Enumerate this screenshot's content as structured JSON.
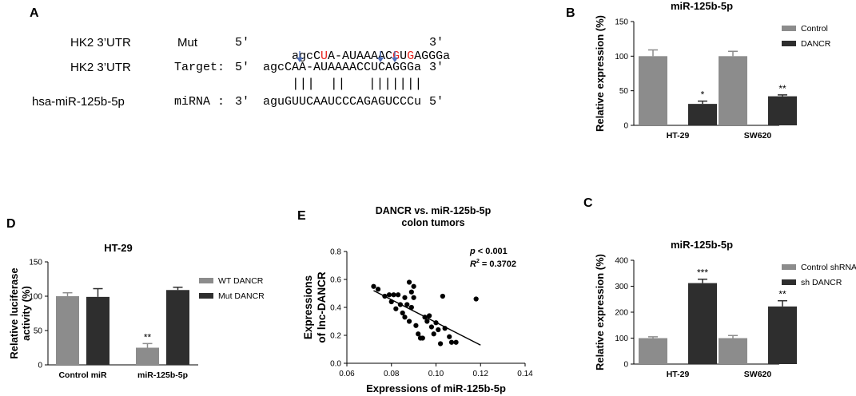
{
  "panel_letters": {
    "a": "A",
    "b": "B",
    "c": "C",
    "d": "D",
    "e": "E"
  },
  "panel_a": {
    "rows": [
      {
        "gene": "HK2 3’UTR",
        "kind": "Mut",
        "prime5": "5'",
        "seq": [
          {
            "t": "agcC",
            "red": false
          },
          {
            "t": "U",
            "red": true
          },
          {
            "t": "A-AUAAAAC",
            "red": false
          },
          {
            "t": "G",
            "red": true
          },
          {
            "t": "U",
            "red": false
          },
          {
            "t": "G",
            "red": true
          },
          {
            "t": "AGGGa",
            "red": false
          }
        ],
        "prime3": "3'"
      },
      {
        "gene": "HK2 3’UTR",
        "kind": "Target:",
        "prime5": "5'",
        "seq": [
          {
            "t": "agcCAA-AUAAAACCUCAGGGa",
            "red": false
          }
        ],
        "prime3": "3'"
      },
      {
        "gene": "hsa-miR-125b-5p",
        "kind": "miRNA :",
        "prime5": "3'",
        "seq": [
          {
            "t": "aguGUUCAAUCCCAGAGUCCCu",
            "red": false
          }
        ],
        "prime3": "5'"
      }
    ],
    "pairing": "|||  ||   |||||||",
    "arrow_color": "#4f6fb8"
  },
  "colors": {
    "light_bar": "#8c8c8c",
    "dark_bar": "#2e2e2e"
  },
  "chart_data": [
    {
      "id": "B",
      "type": "bar",
      "title": "miR-125b-5p",
      "ylabel": "Relative expression (%)",
      "xlabel": "",
      "categories": [
        "HT-29",
        "SW620"
      ],
      "ylim": [
        0,
        150
      ],
      "yticks": [
        "0",
        "50",
        "100",
        "150"
      ],
      "series": [
        {
          "name": "Control",
          "values": [
            100,
            100
          ],
          "errors": [
            9,
            7
          ]
        },
        {
          "name": "DANCR",
          "values": [
            31,
            42
          ],
          "errors": [
            4,
            2
          ]
        }
      ],
      "annotations": [
        {
          "category": "HT-29",
          "series": "DANCR",
          "text": "*"
        },
        {
          "category": "SW620",
          "series": "DANCR",
          "text": "**"
        }
      ],
      "legend_position": "top-right"
    },
    {
      "id": "C",
      "type": "bar",
      "title": "miR-125b-5p",
      "ylabel": "Relative expression (%)",
      "xlabel": "",
      "categories": [
        "HT-29",
        "SW620"
      ],
      "ylim": [
        0,
        400
      ],
      "yticks": [
        "0",
        "100",
        "200",
        "300",
        "400"
      ],
      "series": [
        {
          "name": "Control shRNA",
          "values": [
            100,
            100
          ],
          "errors": [
            5,
            10
          ]
        },
        {
          "name": "sh DANCR",
          "values": [
            312,
            222
          ],
          "errors": [
            15,
            22
          ]
        }
      ],
      "annotations": [
        {
          "category": "HT-29",
          "series": "sh DANCR",
          "text": "***"
        },
        {
          "category": "SW620",
          "series": "sh DANCR",
          "text": "**"
        }
      ],
      "legend_position": "top-right"
    },
    {
      "id": "D",
      "type": "bar",
      "title": "HT-29",
      "ylabel": "Relative luciferase activity (%)",
      "xlabel": "",
      "categories": [
        "Control miR",
        "miR-125b-5p"
      ],
      "ylim": [
        0,
        150
      ],
      "yticks": [
        "0",
        "50",
        "100",
        "150"
      ],
      "series": [
        {
          "name": "WT DANCR",
          "values": [
            100,
            25
          ],
          "errors": [
            5,
            6
          ]
        },
        {
          "name": "Mut DANCR",
          "values": [
            99,
            109
          ],
          "errors": [
            12,
            4
          ]
        }
      ],
      "annotations": [
        {
          "category": "miR-125b-5p",
          "series": "WT DANCR",
          "text": "**"
        }
      ],
      "legend_position": "right"
    },
    {
      "id": "E",
      "type": "scatter",
      "title": "DANCR vs. miR-125b-5p colon tumors",
      "xlabel": "Expressions of miR-125b-5p",
      "ylabel": "Expressions of lnc-DANCR",
      "xlim": [
        0.06,
        0.14
      ],
      "ylim": [
        0.0,
        0.8
      ],
      "xticks": [
        "0.06",
        "0.08",
        "0.10",
        "0.12",
        "0.14"
      ],
      "yticks": [
        "0.0",
        "0.2",
        "0.4",
        "0.6",
        "0.8"
      ],
      "stats": {
        "p": "p < 0.001",
        "r2_label": "R",
        "r2_value": " = 0.3702"
      },
      "points": [
        [
          0.072,
          0.55
        ],
        [
          0.074,
          0.53
        ],
        [
          0.077,
          0.48
        ],
        [
          0.079,
          0.49
        ],
        [
          0.08,
          0.44
        ],
        [
          0.081,
          0.49
        ],
        [
          0.082,
          0.39
        ],
        [
          0.083,
          0.49
        ],
        [
          0.084,
          0.42
        ],
        [
          0.085,
          0.36
        ],
        [
          0.086,
          0.47
        ],
        [
          0.086,
          0.33
        ],
        [
          0.087,
          0.42
        ],
        [
          0.088,
          0.3
        ],
        [
          0.088,
          0.58
        ],
        [
          0.089,
          0.51
        ],
        [
          0.089,
          0.4
        ],
        [
          0.09,
          0.55
        ],
        [
          0.09,
          0.47
        ],
        [
          0.091,
          0.27
        ],
        [
          0.092,
          0.21
        ],
        [
          0.093,
          0.18
        ],
        [
          0.094,
          0.18
        ],
        [
          0.095,
          0.33
        ],
        [
          0.096,
          0.3
        ],
        [
          0.097,
          0.34
        ],
        [
          0.098,
          0.26
        ],
        [
          0.099,
          0.21
        ],
        [
          0.1,
          0.29
        ],
        [
          0.101,
          0.24
        ],
        [
          0.102,
          0.14
        ],
        [
          0.103,
          0.48
        ],
        [
          0.104,
          0.25
        ],
        [
          0.106,
          0.19
        ],
        [
          0.107,
          0.15
        ],
        [
          0.109,
          0.15
        ],
        [
          0.118,
          0.46
        ]
      ],
      "trend": {
        "x": [
          0.072,
          0.12
        ],
        "y": [
          0.52,
          0.13
        ]
      }
    }
  ]
}
